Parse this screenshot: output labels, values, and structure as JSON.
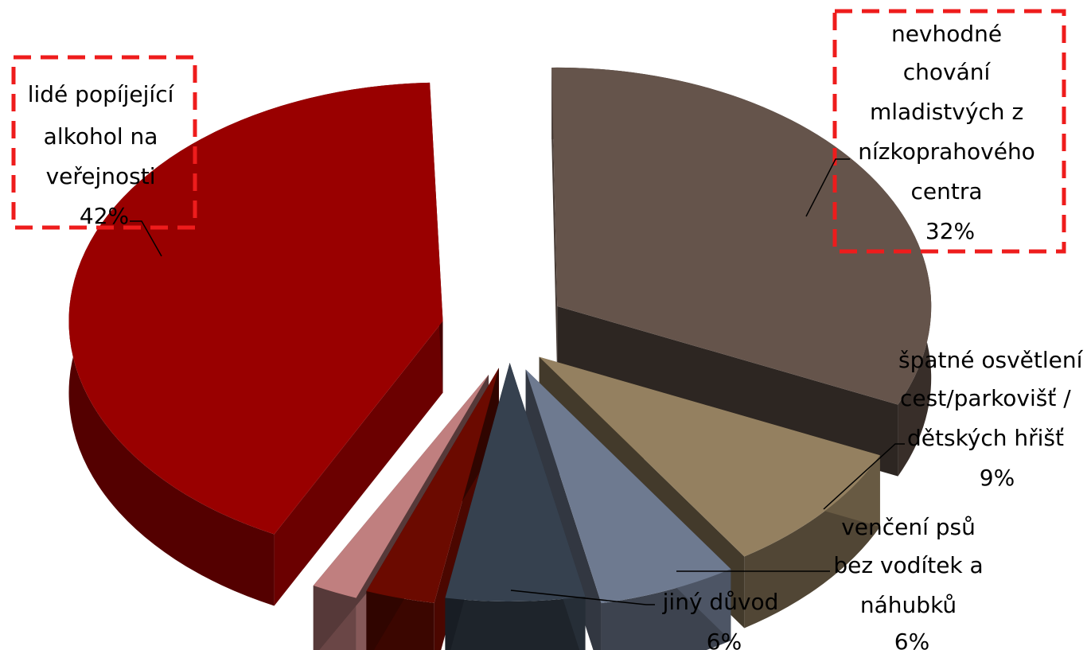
{
  "chart_data": {
    "type": "pie",
    "title": "",
    "slices": [
      {
        "label": "lidé popíjející alkohol na veřejnosti",
        "label_lines": [
          "lidé popíjející",
          "alkohol na",
          "veřejnosti"
        ],
        "value": 42,
        "value_label": "42%",
        "color": "#990000",
        "highlighted": true
      },
      {
        "label": "nevhodné chování mladistvých z nízkoprahového centra",
        "label_lines": [
          "nevhodné",
          "chování",
          "mladistvých z",
          "nízkoprahového",
          "centra"
        ],
        "value": 32,
        "value_label": "32%",
        "color": "#65544b",
        "highlighted": true
      },
      {
        "label": "špatné osvětlení cest/parkovišť / dětských hřišť",
        "label_lines": [
          "špatné osvětlení",
          "cest/parkovišť /",
          "dětských hřišť"
        ],
        "value": 9,
        "value_label": "9%",
        "color": "#948060",
        "highlighted": false
      },
      {
        "label": "venčení psů bez vodítek a náhubků",
        "label_lines": [
          "venčení psů",
          "bez vodítek a",
          "náhubků"
        ],
        "value": 6,
        "value_label": "6%",
        "color": "#6e7a90",
        "highlighted": false
      },
      {
        "label": "jiný důvod",
        "label_lines": [
          "jiný důvod"
        ],
        "value": 6,
        "value_label": "6%",
        "color": "#36414f",
        "highlighted": false
      },
      {
        "label": "",
        "label_lines": [],
        "value": 3,
        "value_label": "",
        "color": "#6b0a00",
        "highlighted": false
      },
      {
        "label": "",
        "label_lines": [],
        "value": 2,
        "value_label": "",
        "color": "#c07f7f",
        "highlighted": false
      }
    ],
    "style": "3d-exploded",
    "highlight_color": "#ee1c1c"
  }
}
